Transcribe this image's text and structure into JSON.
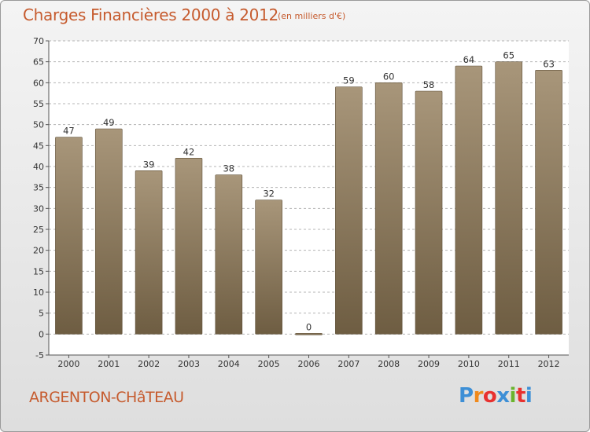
{
  "header": {
    "title": "Charges Financières 2000 à 2012",
    "subtitle": "(en milliers d'€)"
  },
  "footer": {
    "place": "ARGENTON-CHâTEAU",
    "logo": "Proxiti",
    "logo_colors": [
      "#3d8fd6",
      "#f08a1c",
      "#e8312f",
      "#3d8fd6",
      "#6ab42d",
      "#e8312f",
      "#3d8fd6"
    ]
  },
  "colors": {
    "title": "#c65b2e",
    "bar_top": "#a8967a",
    "bar_bottom": "#6e5d42",
    "grid": "#b4b4b4",
    "plot_bg": "#ffffff"
  },
  "chart_data": {
    "type": "bar",
    "title": "Charges Financières 2000 à 2012",
    "subtitle": "(en milliers d'€)",
    "categories": [
      "2000",
      "2001",
      "2002",
      "2003",
      "2004",
      "2005",
      "2006",
      "2007",
      "2008",
      "2009",
      "2010",
      "2011",
      "2012"
    ],
    "values": [
      47,
      49,
      39,
      42,
      38,
      32,
      0,
      59,
      60,
      58,
      64,
      65,
      63
    ],
    "ylim": [
      -5,
      70
    ],
    "ytick_step": 5,
    "grid": true,
    "data_labels": true
  }
}
